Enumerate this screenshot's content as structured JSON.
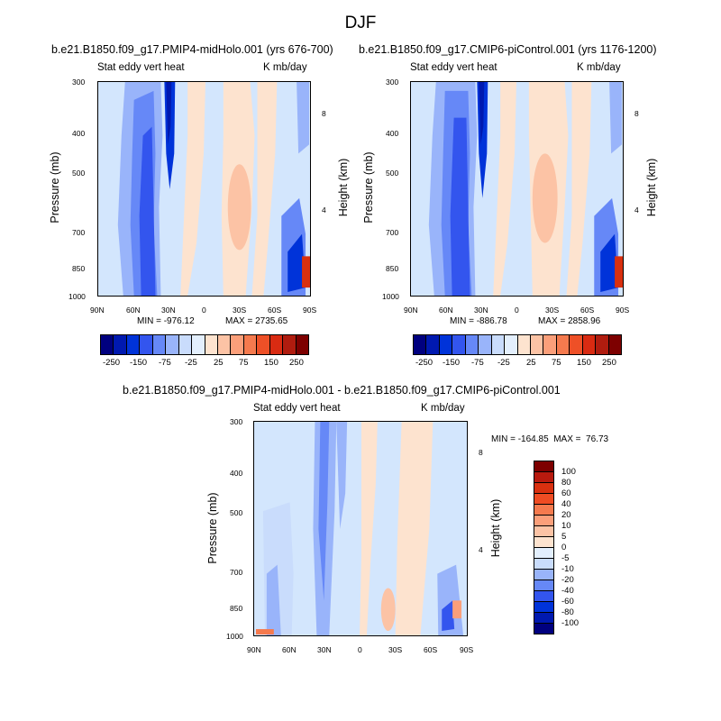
{
  "title": "DJF",
  "panels": [
    {
      "title": "b.e21.B1850.f09_g17.PMIP4-midHolo.001 (yrs 676-700)",
      "left_label": "Stat eddy vert heat",
      "right_label": "K mb/day",
      "ylabel": "Pressure (mb)",
      "ylabel_right": "Height (km)",
      "min": "MIN = -976.12",
      "max": "MAX = 2735.65",
      "xticks": [
        "90N",
        "60N",
        "30N",
        "0",
        "30S",
        "60S",
        "90S"
      ],
      "yticks": [
        "300",
        "400",
        "500",
        "700",
        "850",
        "1000"
      ],
      "yticks_right": [
        "8",
        "4"
      ],
      "colorbar_labels": [
        "-250",
        "-150",
        "-75",
        "-25",
        "25",
        "75",
        "150",
        "250"
      ]
    },
    {
      "title": "b.e21.B1850.f09_g17.CMIP6-piControl.001 (yrs 1176-1200)",
      "left_label": "Stat eddy vert heat",
      "right_label": "K mb/day",
      "ylabel": "Pressure (mb)",
      "ylabel_right": "Height (km)",
      "min": "MIN = -886.78",
      "max": "MAX = 2858.96",
      "xticks": [
        "90N",
        "60N",
        "30N",
        "0",
        "30S",
        "60S",
        "90S"
      ],
      "yticks": [
        "300",
        "400",
        "500",
        "700",
        "850",
        "1000"
      ],
      "yticks_right": [
        "8",
        "4"
      ],
      "colorbar_labels": [
        "-250",
        "-150",
        "-75",
        "-25",
        "25",
        "75",
        "150",
        "250"
      ]
    },
    {
      "title": "b.e21.B1850.f09_g17.PMIP4-midHolo.001 - b.e21.B1850.f09_g17.CMIP6-piControl.001",
      "left_label": "Stat eddy vert heat",
      "right_label": "K mb/day",
      "ylabel": "Pressure (mb)",
      "ylabel_right": "Height (km)",
      "minmax": "MIN = -164.85  MAX =  76.73",
      "xticks": [
        "90N",
        "60N",
        "30N",
        "0",
        "30S",
        "60S",
        "90S"
      ],
      "yticks": [
        "300",
        "400",
        "500",
        "700",
        "850",
        "1000"
      ],
      "yticks_right": [
        "8",
        "4"
      ],
      "colorbar_labels": [
        "100",
        "80",
        "60",
        "40",
        "20",
        "10",
        "5",
        "0",
        "-5",
        "-10",
        "-20",
        "-40",
        "-60",
        "-80",
        "-100"
      ]
    }
  ],
  "colors": {
    "top_scale": [
      "#00007f",
      "#0019b0",
      "#0033d9",
      "#3355ee",
      "#6688f7",
      "#99b4fa",
      "#c9dcfc",
      "#e3effd",
      "#fde3cf",
      "#fcc3a5",
      "#fb9f7a",
      "#f57a4e",
      "#ee5027",
      "#d92b12",
      "#b01c0f",
      "#7d0000"
    ],
    "diff_scale": [
      "#7d0000",
      "#b81a0e",
      "#d9300f",
      "#ef4c23",
      "#f57a4e",
      "#fb9f7a",
      "#fcc3a5",
      "#fde3cf",
      "#e3effd",
      "#c9dcfc",
      "#99b4fa",
      "#6688f7",
      "#3355ee",
      "#0033d9",
      "#0019b0",
      "#00007f"
    ]
  },
  "chart_data": [
    {
      "type": "heatmap",
      "title": "b.e21.B1850.f09_g17.PMIP4-midHolo.001 (yrs 676-700)",
      "variable": "Stat eddy vert heat",
      "units": "K mb/day",
      "x_axis": {
        "label": "",
        "ticks": [
          "90N",
          "60N",
          "30N",
          "0",
          "30S",
          "60S",
          "90S"
        ],
        "range": [
          90,
          -90
        ]
      },
      "y_axis": {
        "label": "Pressure (mb)",
        "ticks": [
          300,
          400,
          500,
          700,
          850,
          1000
        ],
        "range": [
          1000,
          300
        ],
        "scale": "log"
      },
      "y_axis_right": {
        "label": "Height (km)",
        "ticks": [
          8,
          4
        ]
      },
      "min": -976.12,
      "max": 2735.65,
      "levels": [
        -250,
        -200,
        -150,
        -100,
        -75,
        -50,
        -25,
        0,
        25,
        50,
        75,
        100,
        150,
        200,
        250
      ]
    },
    {
      "type": "heatmap",
      "title": "b.e21.B1850.f09_g17.CMIP6-piControl.001 (yrs 1176-1200)",
      "variable": "Stat eddy vert heat",
      "units": "K mb/day",
      "x_axis": {
        "label": "",
        "ticks": [
          "90N",
          "60N",
          "30N",
          "0",
          "30S",
          "60S",
          "90S"
        ],
        "range": [
          90,
          -90
        ]
      },
      "y_axis": {
        "label": "Pressure (mb)",
        "ticks": [
          300,
          400,
          500,
          700,
          850,
          1000
        ],
        "range": [
          1000,
          300
        ],
        "scale": "log"
      },
      "y_axis_right": {
        "label": "Height (km)",
        "ticks": [
          8,
          4
        ]
      },
      "min": -886.78,
      "max": 2858.96,
      "levels": [
        -250,
        -200,
        -150,
        -100,
        -75,
        -50,
        -25,
        0,
        25,
        50,
        75,
        100,
        150,
        200,
        250
      ]
    },
    {
      "type": "heatmap",
      "title": "b.e21.B1850.f09_g17.PMIP4-midHolo.001 - b.e21.B1850.f09_g17.CMIP6-piControl.001",
      "variable": "Stat eddy vert heat",
      "units": "K mb/day",
      "x_axis": {
        "label": "",
        "ticks": [
          "90N",
          "60N",
          "30N",
          "0",
          "30S",
          "60S",
          "90S"
        ],
        "range": [
          90,
          -90
        ]
      },
      "y_axis": {
        "label": "Pressure (mb)",
        "ticks": [
          300,
          400,
          500,
          700,
          850,
          1000
        ],
        "range": [
          1000,
          300
        ],
        "scale": "log"
      },
      "y_axis_right": {
        "label": "Height (km)",
        "ticks": [
          8,
          4
        ]
      },
      "min": -164.85,
      "max": 76.73,
      "levels": [
        100,
        80,
        60,
        40,
        20,
        10,
        5,
        0,
        -5,
        -10,
        -20,
        -40,
        -60,
        -80,
        -100
      ]
    }
  ]
}
